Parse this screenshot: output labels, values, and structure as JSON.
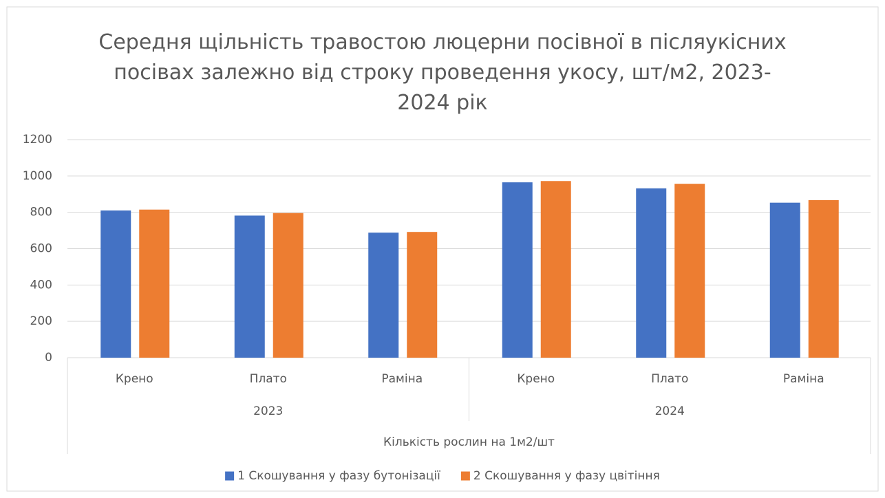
{
  "chart_data": {
    "type": "bar",
    "title": "Середня щільність травостою люцерни посівної в післяукісних посівах залежно від строку проведення укосу, шт/м2, 2023-2024 рік",
    "categories": [
      "Крено",
      "Плато",
      "Раміна",
      "Крено",
      "Плато",
      "Раміна"
    ],
    "group_labels": [
      "2023",
      "2024"
    ],
    "x_label": "Кількість рослин на 1м2/шт",
    "series": [
      {
        "name": "1 Скошування у фазу бутонізації",
        "color": "#4472c4",
        "values": [
          810,
          782,
          688,
          965,
          932,
          853
        ]
      },
      {
        "name": "2 Скошування у фазу цвітіння",
        "color": "#ed7d31",
        "values": [
          815,
          796,
          692,
          972,
          957,
          867
        ]
      }
    ],
    "ylim": [
      0,
      1200
    ],
    "yticks": [
      0,
      200,
      400,
      600,
      800,
      1000,
      1200
    ],
    "grid": true,
    "legend": "bottom"
  }
}
